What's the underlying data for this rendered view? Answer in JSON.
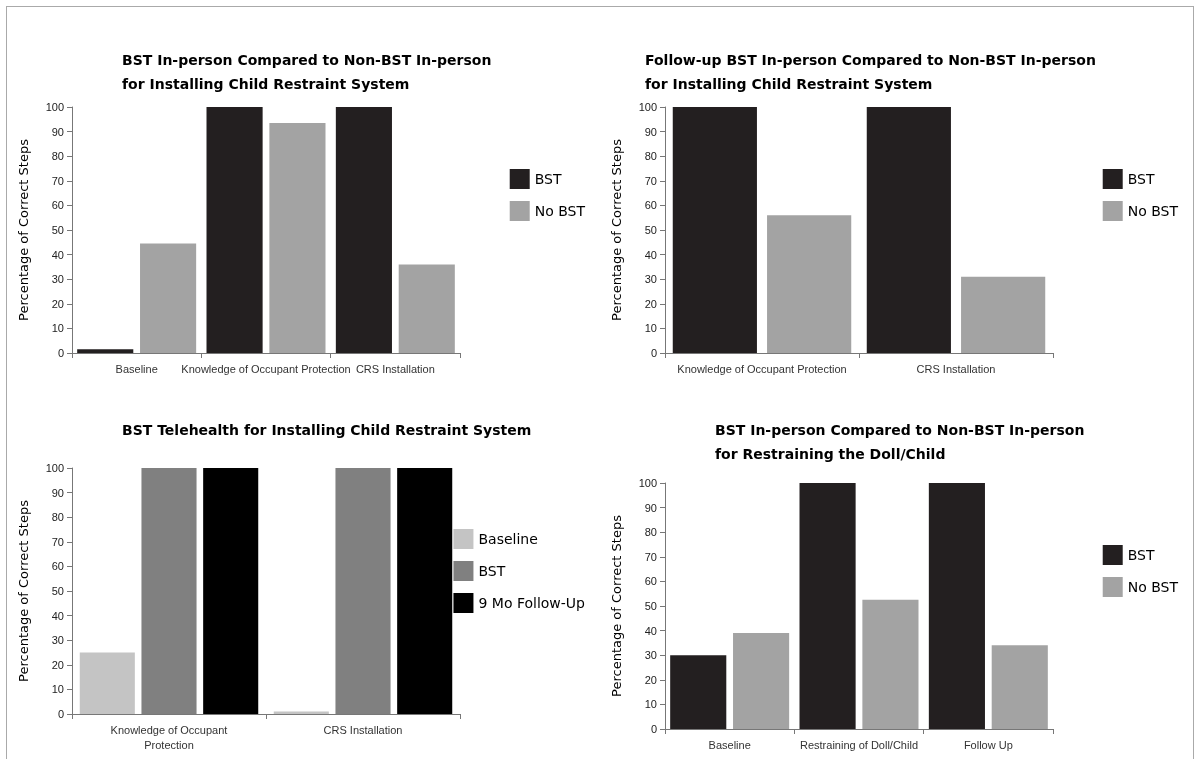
{
  "chart_data": [
    {
      "type": "bar",
      "title": "BST In-person Compared to Non-BST In-person\nfor Installing Child Restraint System",
      "ylabel": "Percentage of Correct Steps",
      "categories": [
        "Baseline",
        "Knowledge of Occupant Protection",
        "CRS Installation"
      ],
      "series": [
        {
          "name": "BST",
          "color": "#231f20",
          "values": [
            1.5,
            100,
            100
          ]
        },
        {
          "name": "No BST",
          "color": "#a3a3a3",
          "values": [
            44.5,
            93.5,
            36
          ]
        }
      ],
      "ylim": [
        0,
        100
      ],
      "yticks": [
        0,
        10,
        20,
        30,
        40,
        50,
        60,
        70,
        80,
        90,
        100
      ],
      "grid": false,
      "legend": "right"
    },
    {
      "type": "bar",
      "title": "Follow-up BST In-person Compared to Non-BST In-person\nfor Installing Child Restraint System",
      "ylabel": "Percentage of Correct Steps",
      "categories": [
        "Knowledge of Occupant Protection",
        "CRS Installation"
      ],
      "series": [
        {
          "name": "BST",
          "color": "#231f20",
          "values": [
            100,
            100
          ]
        },
        {
          "name": "No BST",
          "color": "#a3a3a3",
          "values": [
            56,
            31
          ]
        }
      ],
      "ylim": [
        0,
        100
      ],
      "yticks": [
        0,
        10,
        20,
        30,
        40,
        50,
        60,
        70,
        80,
        90,
        100
      ],
      "grid": false,
      "legend": "right"
    },
    {
      "type": "bar",
      "title": "BST Telehealth for Installing Child Restraint System",
      "ylabel": "Percentage of Correct Steps",
      "categories": [
        "Knowledge of Occupant\nProtection",
        "CRS Installation"
      ],
      "series": [
        {
          "name": "Baseline",
          "color": "#c4c4c4",
          "values": [
            25,
            1
          ]
        },
        {
          "name": "BST",
          "color": "#808080",
          "values": [
            100,
            100
          ]
        },
        {
          "name": "9 Mo Follow-Up",
          "color": "#000000",
          "values": [
            100,
            100
          ]
        }
      ],
      "ylim": [
        0,
        100
      ],
      "yticks": [
        0,
        10,
        20,
        30,
        40,
        50,
        60,
        70,
        80,
        90,
        100
      ],
      "grid": false,
      "legend": "right"
    },
    {
      "type": "bar",
      "title": "BST In-person Compared to Non-BST In-person\nfor Restraining the Doll/Child",
      "ylabel": "Percentage of Correct Steps",
      "categories": [
        "Baseline",
        "Restraining of Doll/Child",
        "Follow Up"
      ],
      "series": [
        {
          "name": "BST",
          "color": "#231f20",
          "values": [
            30,
            100,
            100
          ]
        },
        {
          "name": "No BST",
          "color": "#a3a3a3",
          "values": [
            39,
            52.5,
            34
          ]
        }
      ],
      "ylim": [
        0,
        100
      ],
      "yticks": [
        0,
        10,
        20,
        30,
        40,
        50,
        60,
        70,
        80,
        90,
        100
      ],
      "grid": false,
      "legend": "right"
    }
  ]
}
